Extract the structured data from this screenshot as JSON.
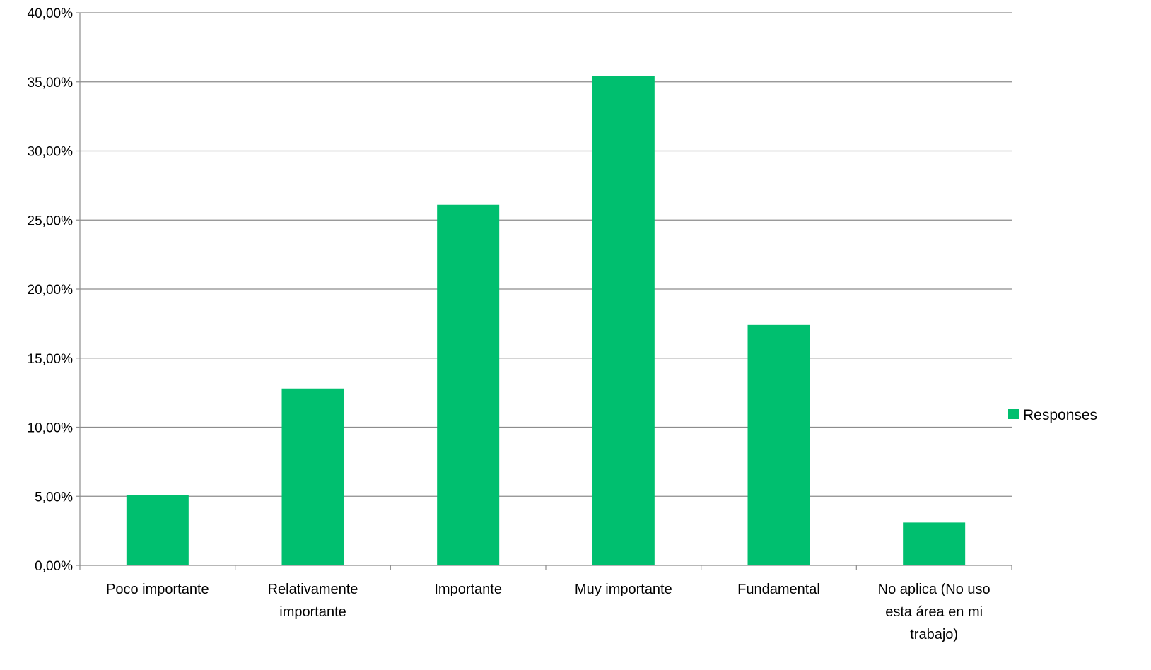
{
  "chart_data": {
    "type": "bar",
    "categories": [
      [
        "Poco importante"
      ],
      [
        "Relativamente",
        "importante"
      ],
      [
        "Importante"
      ],
      [
        "Muy importante"
      ],
      [
        "Fundamental"
      ],
      [
        "No aplica (No uso",
        "esta área en mi",
        "trabajo)"
      ]
    ],
    "series": [
      {
        "name": "Responses",
        "color": "#00BF6F",
        "values": [
          5.1,
          12.8,
          26.1,
          35.4,
          17.4,
          3.1
        ]
      }
    ],
    "ylim": [
      0,
      40
    ],
    "y_ticks": [
      {
        "value": 0,
        "label": "0,00%"
      },
      {
        "value": 5,
        "label": "5,00%"
      },
      {
        "value": 10,
        "label": "10,00%"
      },
      {
        "value": 15,
        "label": "15,00%"
      },
      {
        "value": 20,
        "label": "20,00%"
      },
      {
        "value": 25,
        "label": "25,00%"
      },
      {
        "value": 30,
        "label": "30,00%"
      },
      {
        "value": 35,
        "label": "35,00%"
      },
      {
        "value": 40,
        "label": "40,00%"
      }
    ],
    "grid": true,
    "legend_position": "right",
    "title": "",
    "xlabel": "",
    "ylabel": ""
  }
}
